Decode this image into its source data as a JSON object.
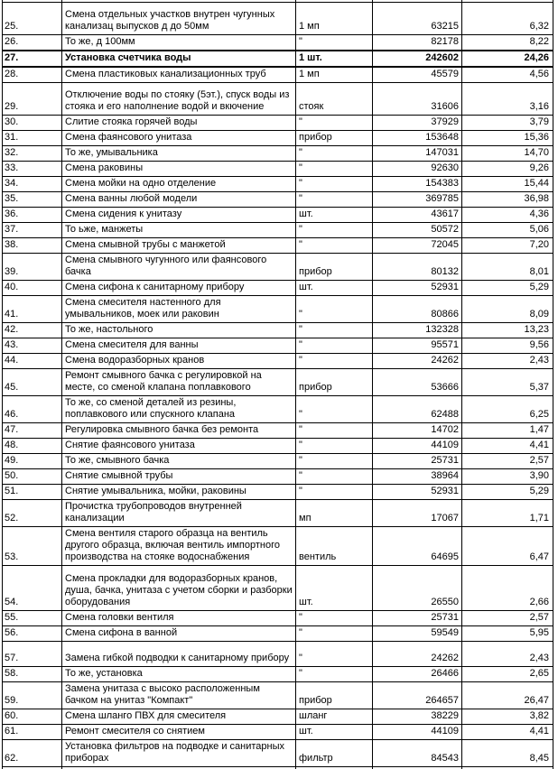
{
  "colors": {
    "background": "#ffffff",
    "border": "#000000",
    "text": "#000000"
  },
  "table": {
    "columns": [
      "num",
      "description",
      "unit",
      "amount",
      "rate"
    ],
    "rows": [
      {
        "num": "25.",
        "description": "Смена отдельных участков внутрен чугунных канализац выпусков д до 50мм",
        "unit": "1 мп",
        "amount": "63215",
        "rate": "6,32"
      },
      {
        "num": "26.",
        "description": "То же, д 100мм",
        "unit": "\"",
        "amount": "82178",
        "rate": "8,22"
      },
      {
        "num": "27.",
        "description": "Установка счетчика воды",
        "unit": "1 шт.",
        "amount": "242602",
        "rate": "24,26",
        "bold": true
      },
      {
        "num": "28.",
        "description": "Смена пластиковых канализационных труб",
        "unit": "1 мп",
        "amount": "45579",
        "rate": "4,56"
      },
      {
        "num": "29.",
        "description": "Отключение воды по стояку (5эт.), спуск воды из стояка и его наполнение водой и вкючение",
        "unit": "стояк",
        "amount": "31606",
        "rate": "3,16"
      },
      {
        "num": "30.",
        "description": "Слитие стояка горячей воды",
        "unit": "\"",
        "amount": "37929",
        "rate": "3,79"
      },
      {
        "num": "31.",
        "description": "Смена фаянсового унитаза",
        "unit": "прибор",
        "amount": "153648",
        "rate": "15,36"
      },
      {
        "num": "32.",
        "description": "То же, умывальника",
        "unit": "\"",
        "amount": "147031",
        "rate": "14,70"
      },
      {
        "num": "33.",
        "description": "Смена раковины",
        "unit": "\"",
        "amount": "92630",
        "rate": "9,26"
      },
      {
        "num": "34.",
        "description": "Смена мойки на одно отделение",
        "unit": "\"",
        "amount": "154383",
        "rate": "15,44"
      },
      {
        "num": "35.",
        "description": "Смена ванны любой модели",
        "unit": "\"",
        "amount": "369785",
        "rate": "36,98"
      },
      {
        "num": "36.",
        "description": "Смена сидения к унитазу",
        "unit": "шт.",
        "amount": "43617",
        "rate": "4,36"
      },
      {
        "num": "37.",
        "description": "То ьже, манжеты",
        "unit": "\"",
        "amount": "50572",
        "rate": "5,06"
      },
      {
        "num": "38.",
        "description": "Смена смывной трубы с манжетой",
        "unit": "\"",
        "amount": "72045",
        "rate": "7,20"
      },
      {
        "num": "39.",
        "description": "Смена смывного чугунного или фаянсового бачка",
        "unit": "прибор",
        "amount": "80132",
        "rate": "8,01"
      },
      {
        "num": "40.",
        "description": "Смена сифона к санитарному прибору",
        "unit": "шт.",
        "amount": "52931",
        "rate": "5,29"
      },
      {
        "num": "41.",
        "description": "Смена смесителя настенного для умывальников, моек или раковин",
        "unit": "\"",
        "amount": "80866",
        "rate": "8,09"
      },
      {
        "num": "42.",
        "description": "То же, настольного",
        "unit": "\"",
        "amount": "132328",
        "rate": "13,23"
      },
      {
        "num": "43.",
        "description": "Смена смесителя для ванны",
        "unit": "\"",
        "amount": "95571",
        "rate": "9,56"
      },
      {
        "num": "44.",
        "description": "Смена водоразборных кранов",
        "unit": "\"",
        "amount": "24262",
        "rate": "2,43"
      },
      {
        "num": "45.",
        "description": "Ремонт смывного бачка с регулировкой на месте, со сменой клапана поплавкового",
        "unit": "прибор",
        "amount": "53666",
        "rate": "5,37"
      },
      {
        "num": "46.",
        "description": "То же, со сменой деталей из резины, поплавкового или спускного клапана",
        "unit": "\"",
        "amount": "62488",
        "rate": "6,25"
      },
      {
        "num": "47.",
        "description": "Регулировка смывного бачка без ремонта",
        "unit": "\"",
        "amount": "14702",
        "rate": "1,47"
      },
      {
        "num": "48.",
        "description": "Снятие фаянсового унитаза",
        "unit": "\"",
        "amount": "44109",
        "rate": "4,41"
      },
      {
        "num": "49.",
        "description": "То же, смывного бачка",
        "unit": "\"",
        "amount": "25731",
        "rate": "2,57"
      },
      {
        "num": "50.",
        "description": "Снятие смывной трубы",
        "unit": "\"",
        "amount": "38964",
        "rate": "3,90"
      },
      {
        "num": "51.",
        "description": "Снятие умывальника, мойки, раковины",
        "unit": "\"",
        "amount": "52931",
        "rate": "5,29"
      },
      {
        "num": "52.",
        "description": "Прочистка трубопроводов внутренней канализации",
        "unit": "мп",
        "amount": "17067",
        "rate": "1,71"
      },
      {
        "num": "53.",
        "description": "Смена вентиля старого образца на вентиль другого образца, включая вентиль импортного производства на стояке водоснабжения",
        "unit": "вентиль",
        "amount": "64695",
        "rate": "6,47"
      },
      {
        "num": "54.",
        "description": "Смена прокладки для водоразборных кранов, душа, бачка, унитаза с учетом сборки и разборки оборудования",
        "unit": "шт.",
        "amount": "26550",
        "rate": "2,66"
      },
      {
        "num": "55.",
        "description": "Смена головки вентиля",
        "unit": "\"",
        "amount": "25731",
        "rate": "2,57"
      },
      {
        "num": "56.",
        "description": "Смена сифона в ванной",
        "unit": "\"",
        "amount": "59549",
        "rate": "5,95"
      },
      {
        "num": "57.",
        "description": "Замена гибкой подводки к санитарному прибору",
        "unit": "\"",
        "amount": "24262",
        "rate": "2,43"
      },
      {
        "num": "58.",
        "description": "То же, установка",
        "unit": "\"",
        "amount": "26466",
        "rate": "2,65"
      },
      {
        "num": "59.",
        "description": "Замена унитаза с высоко расположенным бачком на унитаз \"Компакт\"",
        "unit": "прибор",
        "amount": "264657",
        "rate": "26,47"
      },
      {
        "num": "60.",
        "description": "Смена шланго ПВХ для смесителя",
        "unit": "шланг",
        "amount": "38229",
        "rate": "3,82"
      },
      {
        "num": "61.",
        "description": "Ремонт смесителя со снятием",
        "unit": "шт.",
        "amount": "44109",
        "rate": "4,41"
      },
      {
        "num": "62.",
        "description": "Установка фильтров на подводке и санитарных приборах",
        "unit": "фильтр",
        "amount": "84543",
        "rate": "8,45"
      }
    ]
  }
}
